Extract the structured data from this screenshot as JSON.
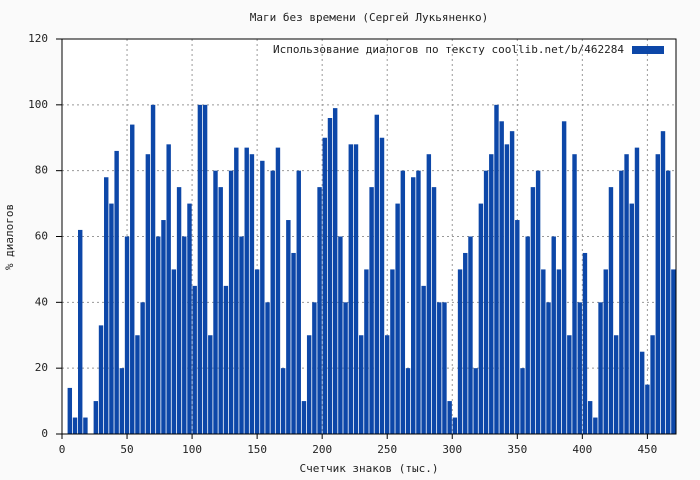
{
  "chart_data": {
    "type": "bar",
    "title": "Маги без времени (Сергей Лукьяненко)",
    "x_label": "Счетчик знаков (тыс.)",
    "y_label": "% диалогов",
    "xlim": [
      0,
      472
    ],
    "ylim": [
      0,
      120
    ],
    "xticks": [
      0,
      50,
      100,
      150,
      200,
      250,
      300,
      350,
      400,
      450
    ],
    "yticks": [
      0,
      20,
      40,
      60,
      80,
      100,
      120
    ],
    "grid": true,
    "legend": "top-right",
    "series": [
      {
        "name": "Использование диалогов по тексту  coollib.net/b/462284",
        "color": "#0d47a8",
        "x": [
          2,
          6,
          10,
          14,
          18,
          22,
          26,
          30,
          34,
          38,
          42,
          46,
          50,
          54,
          58,
          62,
          66,
          70,
          74,
          78,
          82,
          86,
          90,
          94,
          98,
          102,
          106,
          110,
          114,
          118,
          122,
          126,
          130,
          134,
          138,
          142,
          146,
          150,
          154,
          158,
          162,
          166,
          170,
          174,
          178,
          182,
          186,
          190,
          194,
          198,
          202,
          206,
          210,
          214,
          218,
          222,
          226,
          230,
          234,
          238,
          242,
          246,
          250,
          254,
          258,
          262,
          266,
          270,
          274,
          278,
          282,
          286,
          290,
          294,
          298,
          302,
          306,
          310,
          314,
          318,
          322,
          326,
          330,
          334,
          338,
          342,
          346,
          350,
          354,
          358,
          362,
          366,
          370,
          374,
          378,
          382,
          386,
          390,
          394,
          398,
          402,
          406,
          410,
          414,
          418,
          422,
          426,
          430,
          434,
          438,
          442,
          446,
          450,
          454,
          458,
          462,
          466,
          470
        ],
        "values": [
          0,
          14,
          5,
          62,
          5,
          0,
          10,
          33,
          78,
          70,
          86,
          20,
          60,
          94,
          30,
          40,
          85,
          100,
          60,
          65,
          88,
          50,
          75,
          60,
          70,
          45,
          100,
          100,
          30,
          80,
          75,
          45,
          80,
          87,
          60,
          87,
          85,
          50,
          83,
          40,
          80,
          87,
          20,
          65,
          55,
          80,
          10,
          30,
          40,
          75,
          90,
          96,
          99,
          60,
          40,
          88,
          88,
          30,
          50,
          75,
          97,
          90,
          30,
          50,
          70,
          80,
          20,
          78,
          80,
          45,
          85,
          75,
          40,
          40,
          10,
          5,
          50,
          55,
          60,
          20,
          70,
          80,
          85,
          100,
          95,
          88,
          92,
          65,
          20,
          60,
          75,
          80,
          50,
          40,
          60,
          50,
          95,
          30,
          85,
          40,
          55,
          10,
          5,
          40,
          50,
          75,
          30,
          80,
          85,
          70,
          87,
          25,
          15,
          30,
          85,
          92,
          80,
          50
        ]
      }
    ]
  }
}
